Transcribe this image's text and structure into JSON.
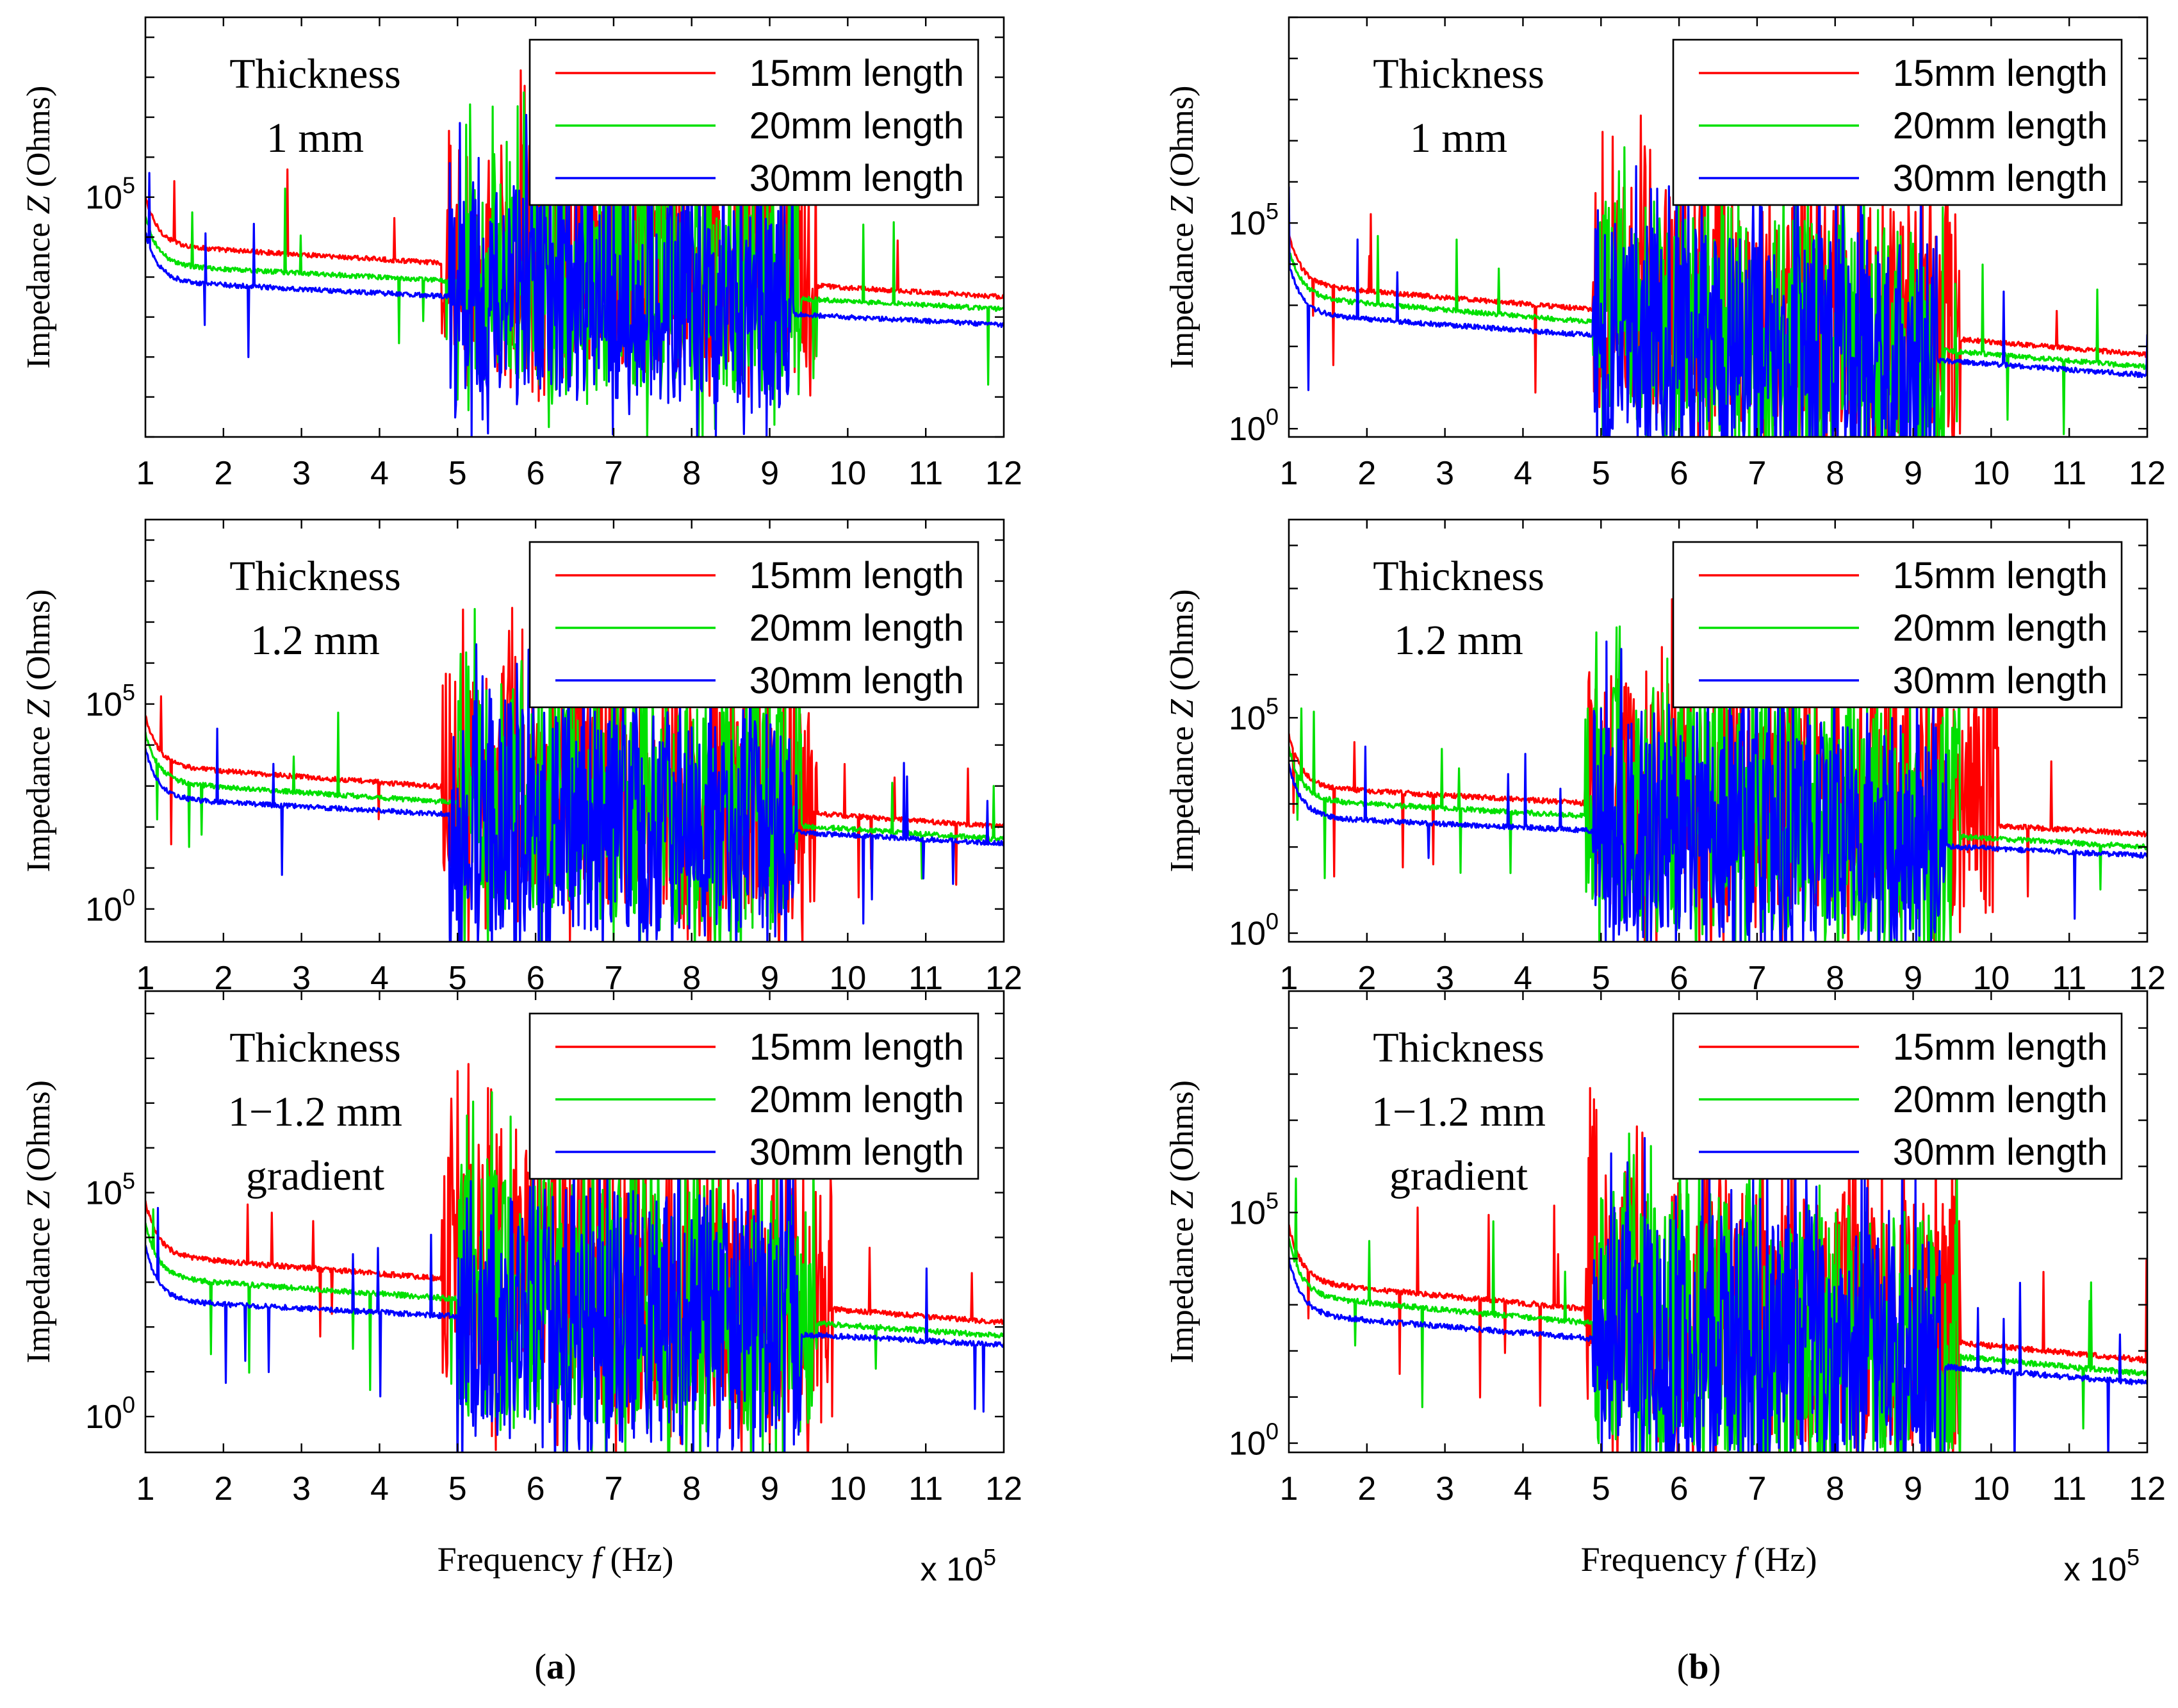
{
  "figure": {
    "panel_labels": [
      "a",
      "b"
    ],
    "xlabel_text": "Frequency",
    "xlabel_var": "f",
    "xlabel_unit": "(Hz)",
    "x_multiplier_base": "x 10",
    "x_multiplier_exp": "5",
    "ylabel_text": "Impedance",
    "ylabel_var": "Z",
    "ylabel_unit": "(Ohms)"
  },
  "colors": {
    "s15": "#ff0000",
    "s20": "#00e000",
    "s30": "#0000ff",
    "axis": "#000000"
  },
  "chart_data": [
    {
      "id": "a1",
      "column": "a",
      "row": 1,
      "type": "line",
      "title_lines": [
        "Thickness",
        "1 mm"
      ],
      "x_ticks": [
        "1",
        "2",
        "3",
        "4",
        "5",
        "6",
        "7",
        "8",
        "9",
        "10",
        "11",
        "12"
      ],
      "y_ticks": [
        {
          "value": 5,
          "base": "10",
          "exp": "5"
        }
      ],
      "xlim": [
        1,
        12
      ],
      "ylim_log10": [
        -1,
        9.5
      ],
      "xlabel": "",
      "ylabel": "Impedance Z (Ohms)",
      "scale": "log",
      "series": [
        {
          "name": "15mm length",
          "base_log10": [
            3.8,
            2.5
          ],
          "noise_log10": [
            2.3,
            3.5
          ],
          "noise_band": [
            4.8,
            9.6
          ]
        },
        {
          "name": "20mm length",
          "base_log10": [
            3.3,
            2.2
          ],
          "noise_log10": [
            2.5,
            3.6
          ],
          "noise_band": [
            5.0,
            9.4
          ]
        },
        {
          "name": "30mm length",
          "base_log10": [
            2.9,
            1.8
          ],
          "noise_log10": [
            2.4,
            3.4
          ],
          "noise_band": [
            4.9,
            9.3
          ]
        }
      ]
    },
    {
      "id": "a2",
      "column": "a",
      "row": 2,
      "type": "line",
      "title_lines": [
        "Thickness",
        "1.2 mm"
      ],
      "x_ticks": [
        "1",
        "2",
        "3",
        "4",
        "5",
        "6",
        "7",
        "8",
        "9",
        "10",
        "11",
        "12"
      ],
      "y_ticks": [
        {
          "value": 5,
          "base": "10",
          "exp": "5"
        },
        {
          "value": 0,
          "base": "10",
          "exp": "0"
        }
      ],
      "xlim": [
        1,
        12
      ],
      "ylim_log10": [
        -0.8,
        9.5
      ],
      "xlabel": "",
      "ylabel": "Impedance Z (Ohms)",
      "scale": "log",
      "series": [
        {
          "name": "15mm length",
          "base_log10": [
            3.5,
            2.0
          ],
          "noise_log10": [
            2.6,
            3.2
          ],
          "noise_band": [
            4.8,
            9.6
          ]
        },
        {
          "name": "20mm length",
          "base_log10": [
            3.1,
            1.7
          ],
          "noise_log10": [
            2.6,
            3.4
          ],
          "noise_band": [
            5.0,
            9.4
          ]
        },
        {
          "name": "30mm length",
          "base_log10": [
            2.7,
            1.6
          ],
          "noise_log10": [
            2.8,
            3.2
          ],
          "noise_band": [
            4.9,
            9.3
          ]
        }
      ]
    },
    {
      "id": "a3",
      "column": "a",
      "row": 3,
      "type": "line",
      "title_lines": [
        "Thickness",
        "1−1.2 mm",
        "gradient"
      ],
      "x_ticks": [
        "1",
        "2",
        "3",
        "4",
        "5",
        "6",
        "7",
        "8",
        "9",
        "10",
        "11",
        "12"
      ],
      "y_ticks": [
        {
          "value": 5,
          "base": "10",
          "exp": "5"
        },
        {
          "value": 0,
          "base": "10",
          "exp": "0"
        }
      ],
      "xlim": [
        1,
        12
      ],
      "ylim_log10": [
        -0.8,
        9.5
      ],
      "xlabel": "Frequency f (Hz)",
      "ylabel": "Impedance Z (Ohms)",
      "scale": "log",
      "series": [
        {
          "name": "15mm length",
          "base_log10": [
            3.6,
            2.1
          ],
          "noise_log10": [
            2.6,
            3.4
          ],
          "noise_band": [
            4.8,
            9.8
          ]
        },
        {
          "name": "20mm length",
          "base_log10": [
            3.1,
            1.8
          ],
          "noise_log10": [
            2.6,
            3.4
          ],
          "noise_band": [
            5.0,
            9.6
          ]
        },
        {
          "name": "30mm length",
          "base_log10": [
            2.6,
            1.6
          ],
          "noise_log10": [
            2.7,
            3.4
          ],
          "noise_band": [
            5.0,
            9.4
          ]
        }
      ]
    },
    {
      "id": "b1",
      "column": "b",
      "row": 1,
      "type": "line",
      "title_lines": [
        "Thickness",
        "1 mm"
      ],
      "x_ticks": [
        "1",
        "2",
        "3",
        "4",
        "5",
        "6",
        "7",
        "8",
        "9",
        "10",
        "11",
        "12"
      ],
      "y_ticks": [
        {
          "value": 5,
          "base": "10",
          "exp": "5"
        },
        {
          "value": 0,
          "base": "10",
          "exp": "0"
        }
      ],
      "xlim": [
        1,
        12
      ],
      "ylim_log10": [
        -0.2,
        10
      ],
      "xlabel": "",
      "ylabel": "Impedance Z (Ohms)",
      "scale": "log",
      "series": [
        {
          "name": "15mm length",
          "base_log10": [
            3.5,
            1.8
          ],
          "noise_log10": [
            2.5,
            3.4
          ],
          "noise_band": [
            4.9,
            9.6
          ]
        },
        {
          "name": "20mm length",
          "base_log10": [
            3.2,
            1.5
          ],
          "noise_log10": [
            2.8,
            3.4
          ],
          "noise_band": [
            4.9,
            9.4
          ]
        },
        {
          "name": "30mm length",
          "base_log10": [
            2.8,
            1.3
          ],
          "noise_log10": [
            2.6,
            3.2
          ],
          "noise_band": [
            4.9,
            9.3
          ]
        }
      ]
    },
    {
      "id": "b2",
      "column": "b",
      "row": 2,
      "type": "line",
      "title_lines": [
        "Thickness",
        "1.2 mm"
      ],
      "x_ticks": [
        "1",
        "2",
        "3",
        "4",
        "5",
        "6",
        "7",
        "8",
        "9",
        "10",
        "11",
        "12"
      ],
      "y_ticks": [
        {
          "value": 5,
          "base": "10",
          "exp": "5"
        },
        {
          "value": 0,
          "base": "10",
          "exp": "0"
        }
      ],
      "xlim": [
        1,
        12
      ],
      "ylim_log10": [
        -0.2,
        9.6
      ],
      "xlabel": "",
      "ylabel": "Impedance Z (Ohms)",
      "scale": "log",
      "series": [
        {
          "name": "15mm length",
          "base_log10": [
            3.4,
            2.3
          ],
          "noise_log10": [
            2.3,
            3.4
          ],
          "noise_band": [
            4.8,
            10.1
          ]
        },
        {
          "name": "20mm length",
          "base_log10": [
            3.1,
            2.0
          ],
          "noise_log10": [
            2.6,
            3.4
          ],
          "noise_band": [
            4.8,
            9.6
          ]
        },
        {
          "name": "30mm length",
          "base_log10": [
            2.7,
            1.8
          ],
          "noise_log10": [
            2.4,
            3.2
          ],
          "noise_band": [
            4.9,
            9.4
          ]
        }
      ]
    },
    {
      "id": "b3",
      "column": "b",
      "row": 3,
      "type": "line",
      "title_lines": [
        "Thickness",
        "1−1.2 mm",
        "gradient"
      ],
      "x_ticks": [
        "1",
        "2",
        "3",
        "4",
        "5",
        "6",
        "7",
        "8",
        "9",
        "10",
        "11",
        "12"
      ],
      "y_ticks": [
        {
          "value": 5,
          "base": "10",
          "exp": "5"
        },
        {
          "value": 0,
          "base": "10",
          "exp": "0"
        }
      ],
      "xlim": [
        1,
        12
      ],
      "ylim_log10": [
        -0.2,
        9.8
      ],
      "xlabel": "Frequency f (Hz)",
      "ylabel": "Impedance Z (Ohms)",
      "scale": "log",
      "series": [
        {
          "name": "15mm length",
          "base_log10": [
            3.5,
            1.8
          ],
          "noise_log10": [
            2.4,
            3.4
          ],
          "noise_band": [
            4.8,
            9.6
          ]
        },
        {
          "name": "20mm length",
          "base_log10": [
            3.2,
            1.5
          ],
          "noise_log10": [
            2.6,
            3.4
          ],
          "noise_band": [
            4.9,
            9.6
          ]
        },
        {
          "name": "30mm length",
          "base_log10": [
            2.8,
            1.3
          ],
          "noise_log10": [
            2.6,
            3.2
          ],
          "noise_band": [
            4.9,
            9.4
          ]
        }
      ]
    }
  ]
}
